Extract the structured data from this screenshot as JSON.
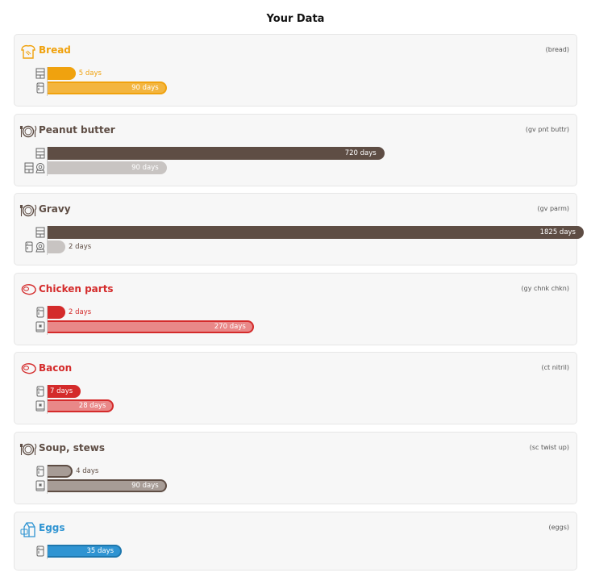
{
  "page": {
    "title": "Your Data"
  },
  "colors": {
    "orange": "#f0a20e",
    "orange_light": "#f3b53f",
    "brown": "#5e4d44",
    "gray_light": "#c8c4c2",
    "gray_brown": "#a79c96",
    "red": "#d42b2b",
    "red_light": "#e98888",
    "blue": "#2f94d2"
  },
  "chart_data": {
    "type": "bar",
    "orientation": "horizontal",
    "unit": "days",
    "title": "Your Data",
    "groups": [
      {
        "name": "Bread",
        "code": "(bread)",
        "icon": "bread-icon",
        "title_color": "#f0a20e",
        "bars": [
          {
            "storage": [
              "pantry"
            ],
            "value": 5,
            "label": "5 days",
            "fill": "#f0a20e",
            "stroke": "#f0a20e",
            "text_color": "#f0a20e"
          },
          {
            "storage": [
              "fridge"
            ],
            "value": 90,
            "label": "90 days",
            "fill": "#f3b53f",
            "stroke": "#f0a20e",
            "text_color": "#ffffff"
          }
        ]
      },
      {
        "name": "Peanut butter",
        "code": "(gv pnt buttr)",
        "icon": "plate-icon",
        "title_color": "#5e4d44",
        "bars": [
          {
            "storage": [
              "pantry"
            ],
            "value": 720,
            "label": "720 days",
            "fill": "#5e4d44",
            "stroke": "#5e4d44",
            "text_color": "#ffffff"
          },
          {
            "storage": [
              "pantry",
              "opened"
            ],
            "value": 90,
            "label": "90 days",
            "fill": "#c8c4c2",
            "stroke": "#c8c4c2",
            "text_color": "#ffffff"
          }
        ]
      },
      {
        "name": "Gravy",
        "code": "(gv parm)",
        "icon": "plate-icon",
        "title_color": "#5e4d44",
        "bars": [
          {
            "storage": [
              "pantry"
            ],
            "value": 1825,
            "label": "1825 days",
            "fill": "#5e4d44",
            "stroke": "#5e4d44",
            "text_color": "#ffffff"
          },
          {
            "storage": [
              "fridge",
              "opened"
            ],
            "value": 2,
            "label": "2 days",
            "fill": "#c8c4c2",
            "stroke": "#c8c4c2",
            "text_color": "#5e4d44"
          }
        ]
      },
      {
        "name": "Chicken parts",
        "code": "(gy chnk chkn)",
        "icon": "meat-icon",
        "title_color": "#d42b2b",
        "bars": [
          {
            "storage": [
              "fridge"
            ],
            "value": 2,
            "label": "2 days",
            "fill": "#d42b2b",
            "stroke": "#d42b2b",
            "text_color": "#d42b2b"
          },
          {
            "storage": [
              "freezer"
            ],
            "value": 270,
            "label": "270 days",
            "fill": "#e98888",
            "stroke": "#d42b2b",
            "text_color": "#ffffff"
          }
        ]
      },
      {
        "name": "Bacon",
        "code": "(ct nitril)",
        "icon": "meat-icon",
        "title_color": "#d42b2b",
        "bars": [
          {
            "storage": [
              "fridge"
            ],
            "value": 7,
            "label": "7 days",
            "fill": "#d42b2b",
            "stroke": "#d42b2b",
            "text_color": "#ffffff"
          },
          {
            "storage": [
              "freezer"
            ],
            "value": 28,
            "label": "28 days",
            "fill": "#e98888",
            "stroke": "#d42b2b",
            "text_color": "#ffffff"
          }
        ]
      },
      {
        "name": "Soup, stews",
        "code": "(sc twist up)",
        "icon": "plate-icon",
        "title_color": "#5e4d44",
        "bars": [
          {
            "storage": [
              "fridge"
            ],
            "value": 4,
            "label": "4 days",
            "fill": "#a79c96",
            "stroke": "#5e4d44",
            "text_color": "#5e4d44"
          },
          {
            "storage": [
              "freezer"
            ],
            "value": 90,
            "label": "90 days",
            "fill": "#a79c96",
            "stroke": "#5e4d44",
            "text_color": "#ffffff"
          }
        ]
      },
      {
        "name": "Eggs",
        "code": "(eggs)",
        "icon": "milk-carton-icon",
        "title_color": "#2f94d2",
        "bars": [
          {
            "storage": [
              "fridge"
            ],
            "value": 35,
            "label": "35 days",
            "fill": "#2f94d2",
            "stroke": "#1e77ad",
            "text_color": "#ffffff"
          }
        ]
      }
    ]
  }
}
